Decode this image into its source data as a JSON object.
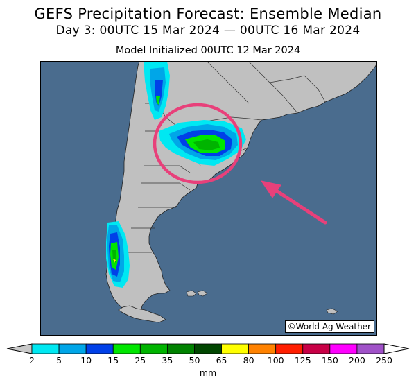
{
  "title": {
    "line1": "GEFS Precipitation Forecast: Ensemble Median",
    "line2": "Day 3: 00UTC 15 Mar 2024 — 00UTC 16 Mar 2024",
    "line3": "Model Initialized 00UTC 12 Mar 2024"
  },
  "credit": "©World Ag Weather",
  "colorbar": {
    "units": "mm",
    "ticks": [
      "2",
      "5",
      "10",
      "15",
      "25",
      "35",
      "50",
      "65",
      "80",
      "100",
      "125",
      "150",
      "200",
      "250"
    ],
    "colors": [
      "#00e8f2",
      "#00a6e8",
      "#0040e8",
      "#00e600",
      "#00b400",
      "#008200",
      "#004600",
      "#ffff00",
      "#ff8200",
      "#ff1e00",
      "#c80046",
      "#ff00ff",
      "#a052c8"
    ],
    "below_color": "#c8c8c8",
    "above_color": "#ffffff"
  },
  "colors": {
    "ocean": "#4a6c8e",
    "land": "#c0c0c0",
    "annotation": "#e8407a"
  }
}
